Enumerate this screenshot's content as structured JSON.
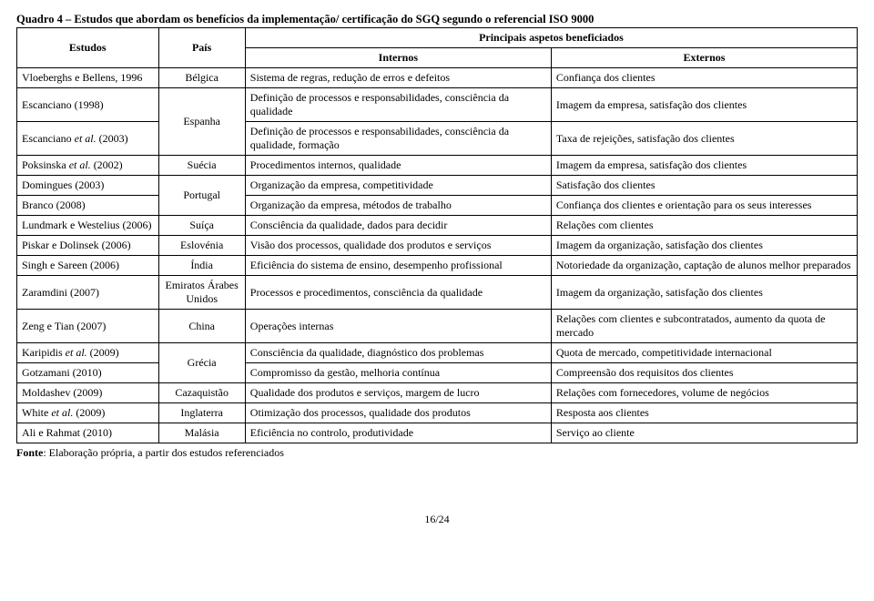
{
  "title": "Quadro 4 – Estudos que abordam os benefícios da implementação/ certificação do SGQ segundo o referencial ISO 9000",
  "header": {
    "col1": "Estudos",
    "col2": "País",
    "span": "Principais aspetos beneficiados",
    "col3": "Internos",
    "col4": "Externos"
  },
  "rows": [
    {
      "study": "Vloeberghs e Bellens, 1996",
      "country": "Bélgica",
      "internal": "Sistema de regras, redução de erros e defeitos",
      "external": "Confiança dos clientes"
    },
    {
      "study": "Escanciano (1998)",
      "country": "Espanha",
      "country_rowspan": 2,
      "internal": "Definição de processos e responsabilidades, consciência da qualidade",
      "external": "Imagem da empresa, satisfação dos clientes"
    },
    {
      "study": "Escanciano et al. (2003)",
      "internal": "Definição de processos e responsabilidades, consciência da qualidade, formação",
      "external": "Taxa de rejeições, satisfação dos clientes"
    },
    {
      "study": "Poksinska et al. (2002)",
      "country": "Suécia",
      "internal": "Procedimentos internos, qualidade",
      "external": "Imagem da empresa, satisfação dos clientes"
    },
    {
      "study": "Domingues (2003)",
      "country": "Portugal",
      "country_rowspan": 2,
      "internal": "Organização da empresa, competitividade",
      "external": "Satisfação dos clientes"
    },
    {
      "study": "Branco (2008)",
      "internal": "Organização da empresa, métodos de trabalho",
      "external": "Confiança dos clientes e orientação para os seus interesses"
    },
    {
      "study": "Lundmark e Westelius (2006)",
      "country": "Suíça",
      "internal": "Consciência da qualidade, dados para decidir",
      "external": "Relações com clientes"
    },
    {
      "study": "Piskar e Dolinsek (2006)",
      "country": "Eslovénia",
      "internal": "Visão dos processos, qualidade dos produtos e serviços",
      "external": "Imagem da organização, satisfação dos clientes"
    },
    {
      "study": "Singh e Sareen (2006)",
      "country": "Índia",
      "internal": "Eficiência do sistema de ensino, desempenho profissional",
      "external": "Notoriedade da organização, captação de alunos melhor preparados"
    },
    {
      "study": "Zaramdini (2007)",
      "country": "Emiratos Árabes Unidos",
      "internal": "Processos e procedimentos, consciência da qualidade",
      "external": "Imagem da organização, satisfação dos clientes"
    },
    {
      "study": "Zeng e Tian (2007)",
      "country": "China",
      "internal": "Operações internas",
      "external": "Relações com clientes e subcontratados, aumento da quota de mercado"
    },
    {
      "study": "Karipidis et al. (2009)",
      "country": "Grécia",
      "country_rowspan": 2,
      "internal": "Consciência da qualidade, diagnóstico dos problemas",
      "external": "Quota de mercado, competitividade internacional"
    },
    {
      "study": "Gotzamani (2010)",
      "internal": "Compromisso da gestão, melhoria contínua",
      "external": "Compreensão dos requisitos dos clientes"
    },
    {
      "study": "Moldashev (2009)",
      "country": "Cazaquistão",
      "internal": "Qualidade dos produtos e serviços, margem de lucro",
      "external": "Relações com fornecedores, volume de negócios"
    },
    {
      "study": "White et al. (2009)",
      "country": "Inglaterra",
      "internal": "Otimização dos processos, qualidade dos produtos",
      "external": "Resposta aos clientes"
    },
    {
      "study": "Ali e Rahmat (2010)",
      "country": "Malásia",
      "internal": "Eficiência no controlo, produtividade",
      "external": "Serviço ao cliente"
    }
  ],
  "source_label": "Fonte",
  "source_text": ": Elaboração própria, a partir dos estudos referenciados",
  "page_number": "16/24"
}
